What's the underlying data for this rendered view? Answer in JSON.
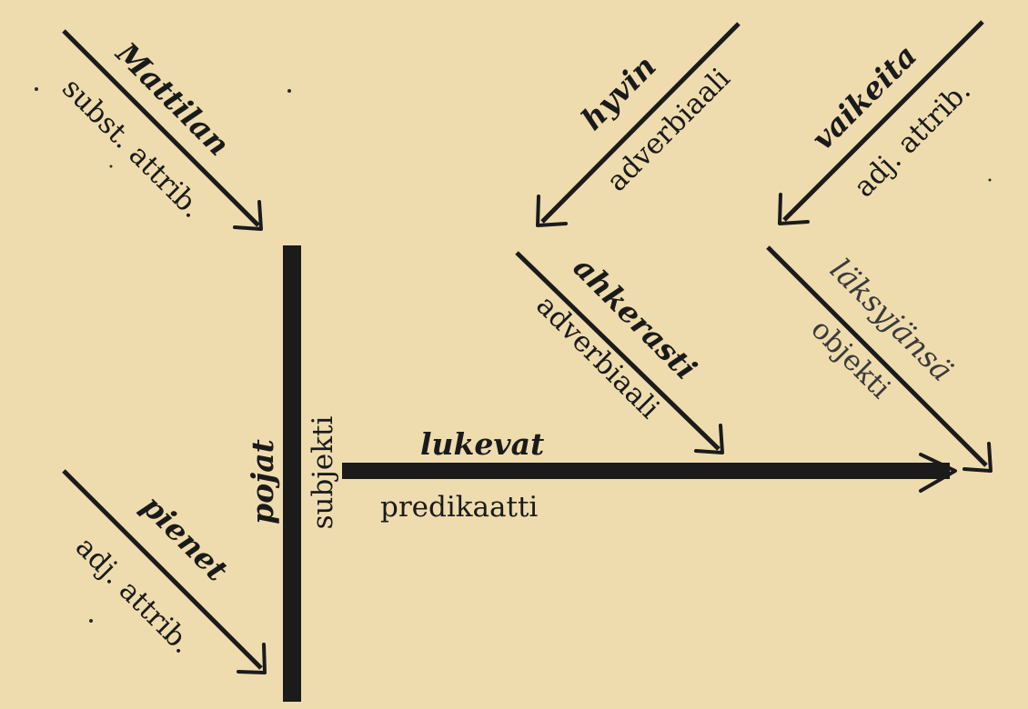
{
  "colors": {
    "paper": "#efdcae",
    "ink": "#1b1b1b"
  },
  "subject": {
    "word": "pojat",
    "role": "subjekti"
  },
  "predicate": {
    "word": "lukevat",
    "role": "predikaatti"
  },
  "modifiers": {
    "mattilan": {
      "word": "Mattilan",
      "role": "subst. attrib."
    },
    "pienet": {
      "word": "pienet",
      "role": "adj. attrib."
    },
    "ahkerasti": {
      "word": "ahkerasti",
      "role": "adverbiaali"
    },
    "hyvin": {
      "word": "hyvin",
      "role": "adverbiaali"
    },
    "laksyjansa": {
      "word": "läksyjänsä",
      "role": "objekti"
    },
    "vaikeita": {
      "word": "vaikeita",
      "role": "adj. attrib."
    }
  }
}
